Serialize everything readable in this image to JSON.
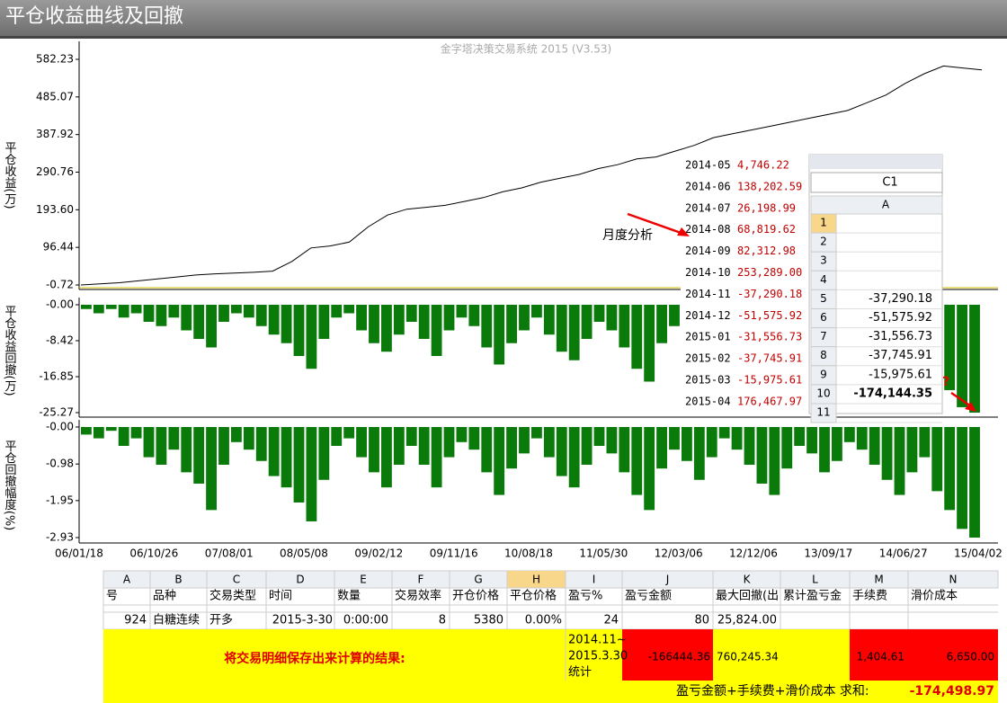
{
  "header": {
    "title": "平仓收益曲线及回撤"
  },
  "chart_data": [
    {
      "type": "line",
      "title": "金字塔决策交易系统 2015 (V3.53)",
      "y_label": "平仓收益(万)",
      "color": "#000000",
      "ylim": [
        -0.72,
        582.23
      ],
      "yticks": [
        582.23,
        485.07,
        387.92,
        290.76,
        {
          "value": 193.6,
          "label": "193.60"
        },
        96.44,
        -0.72
      ],
      "values": [
        -0.72,
        2,
        5,
        10,
        15,
        20,
        25,
        28,
        30,
        32,
        35,
        60,
        95,
        100,
        110,
        150,
        180,
        195,
        200,
        205,
        215,
        225,
        240,
        250,
        265,
        275,
        285,
        300,
        310,
        325,
        330,
        345,
        360,
        380,
        390,
        400,
        410,
        420,
        430,
        440,
        450,
        470,
        490,
        520,
        545,
        565,
        560,
        555
      ]
    },
    {
      "type": "bar",
      "y_label": "平仓收益回撤(万)",
      "color": "#0a7a0a",
      "ylim": [
        -25.27,
        0
      ],
      "yticks": [
        {
          "value": 0,
          "label": "-0.00"
        },
        -8.42,
        -16.85,
        -25.27
      ],
      "values": [
        -1,
        -2,
        -1,
        -3,
        -2,
        -4,
        -5,
        -3,
        -6,
        -8,
        -10,
        -4,
        -2,
        -3,
        -5,
        -7,
        -9,
        -12,
        -15,
        -8,
        -3,
        -2,
        -6,
        -9,
        -11,
        -7,
        -4,
        -8,
        -12,
        -6,
        -3,
        -5,
        -10,
        -14,
        -9,
        -6,
        -3,
        -7,
        -11,
        -13,
        -8,
        -4,
        -6,
        -10,
        -15,
        -18,
        -9,
        -5,
        -8,
        -12,
        -7,
        -3,
        -6,
        -9,
        -13,
        -16,
        -10,
        -5,
        -7,
        -11,
        -8,
        -4,
        -6,
        -10,
        -14,
        -18,
        -12,
        -8,
        -16,
        -20,
        -24,
        -25.27
      ]
    },
    {
      "type": "bar",
      "y_label": "平仓回撤幅度(%)",
      "color": "#0a7a0a",
      "ylim": [
        -2.93,
        0
      ],
      "yticks": [
        {
          "value": 0,
          "label": "-0.00"
        },
        -0.98,
        -1.95,
        -2.93
      ],
      "x_labels": [
        "06/01/18",
        "06/10/26",
        "07/08/01",
        "08/05/08",
        "09/02/12",
        "09/11/16",
        "10/08/18",
        "11/05/30",
        "12/03/06",
        "12/12/06",
        "13/09/17",
        "14/06/27",
        "15/04/02"
      ],
      "values": [
        -0.2,
        -0.3,
        -0.1,
        -0.5,
        -0.3,
        -0.8,
        -1.0,
        -0.6,
        -1.2,
        -1.5,
        -2.2,
        -1.0,
        -0.4,
        -0.6,
        -0.9,
        -1.3,
        -1.6,
        -2.0,
        -2.5,
        -1.4,
        -0.5,
        -0.3,
        -0.8,
        -1.2,
        -1.6,
        -1.0,
        -0.5,
        -1.0,
        -1.6,
        -0.8,
        -0.4,
        -0.6,
        -1.2,
        -1.8,
        -1.1,
        -0.7,
        -0.3,
        -0.8,
        -1.3,
        -1.6,
        -1.0,
        -0.5,
        -0.7,
        -1.2,
        -1.8,
        -2.2,
        -1.1,
        -0.6,
        -0.9,
        -1.4,
        -0.8,
        -0.3,
        -0.6,
        -1.0,
        -1.5,
        -1.8,
        -1.1,
        -0.5,
        -0.7,
        -1.2,
        -0.9,
        -0.4,
        -0.6,
        -1.0,
        -1.4,
        -1.8,
        -1.2,
        -0.8,
        -1.7,
        -2.2,
        -2.7,
        -2.93
      ]
    }
  ],
  "monthly_table": {
    "rows": [
      [
        "2014-05",
        "4,746.22"
      ],
      [
        "2014-06",
        "138,202.59"
      ],
      [
        "2014-07",
        "26,198.99"
      ],
      [
        "2014-08",
        "68,819.62"
      ],
      [
        "2014-09",
        "82,312.98"
      ],
      [
        "2014-10",
        "253,289.00"
      ],
      [
        "2014-11",
        "-37,290.18"
      ],
      [
        "2014-12",
        "-51,575.92"
      ],
      [
        "2015-01",
        "-31,556.73"
      ],
      [
        "2015-02",
        "-37,745.91"
      ],
      [
        "2015-03",
        "-15,975.61"
      ],
      [
        "2015-04",
        "176,467.97"
      ]
    ]
  },
  "annotations": {
    "monthly": "月度分析",
    "question": "?"
  },
  "excel": {
    "name_box": "C1",
    "column": "A",
    "rows": [
      {
        "n": "1"
      },
      {
        "n": "2"
      },
      {
        "n": "3"
      },
      {
        "n": "4"
      },
      {
        "n": "5",
        "value": "-37,290.18"
      },
      {
        "n": "6",
        "value": "-51,575.92"
      },
      {
        "n": "7",
        "value": "-31,556.73"
      },
      {
        "n": "8",
        "value": "-37,745.91"
      },
      {
        "n": "9",
        "value": "-15,975.61"
      },
      {
        "n": "10",
        "value": "-174,144.35"
      },
      {
        "n": "11"
      }
    ]
  },
  "sheet": {
    "columns": [
      "A",
      "B",
      "C",
      "D",
      "E",
      "F",
      "G",
      "H",
      "I",
      "J",
      "K",
      "L",
      "M",
      "N"
    ],
    "header": [
      "号",
      "品种",
      "交易类型",
      "时间",
      "数量",
      "交易效率",
      "开仓价格",
      "平仓价格",
      "盈亏%",
      "盈亏金额",
      "最大回撤(出",
      "累计盈亏金",
      "手续费",
      "滑价成本"
    ],
    "row": [
      "924",
      "白糖连续",
      "开多",
      "2015-3-30",
      "0:00:00",
      "8",
      "5380",
      "0.00%",
      "24",
      "80",
      "25,824.00"
    ],
    "summary_label": "将交易明细保存出来计算的结果:",
    "period": [
      "2014.11~",
      "2015.3.30",
      "统计"
    ],
    "pnl": "-166444.36",
    "drawdown": "760,245.34",
    "fee": "1,404.61",
    "slippage": "6,650.00",
    "sum_label": "盈亏金额+手续费+滑价成本 求和:",
    "sum": "-174,498.97"
  }
}
